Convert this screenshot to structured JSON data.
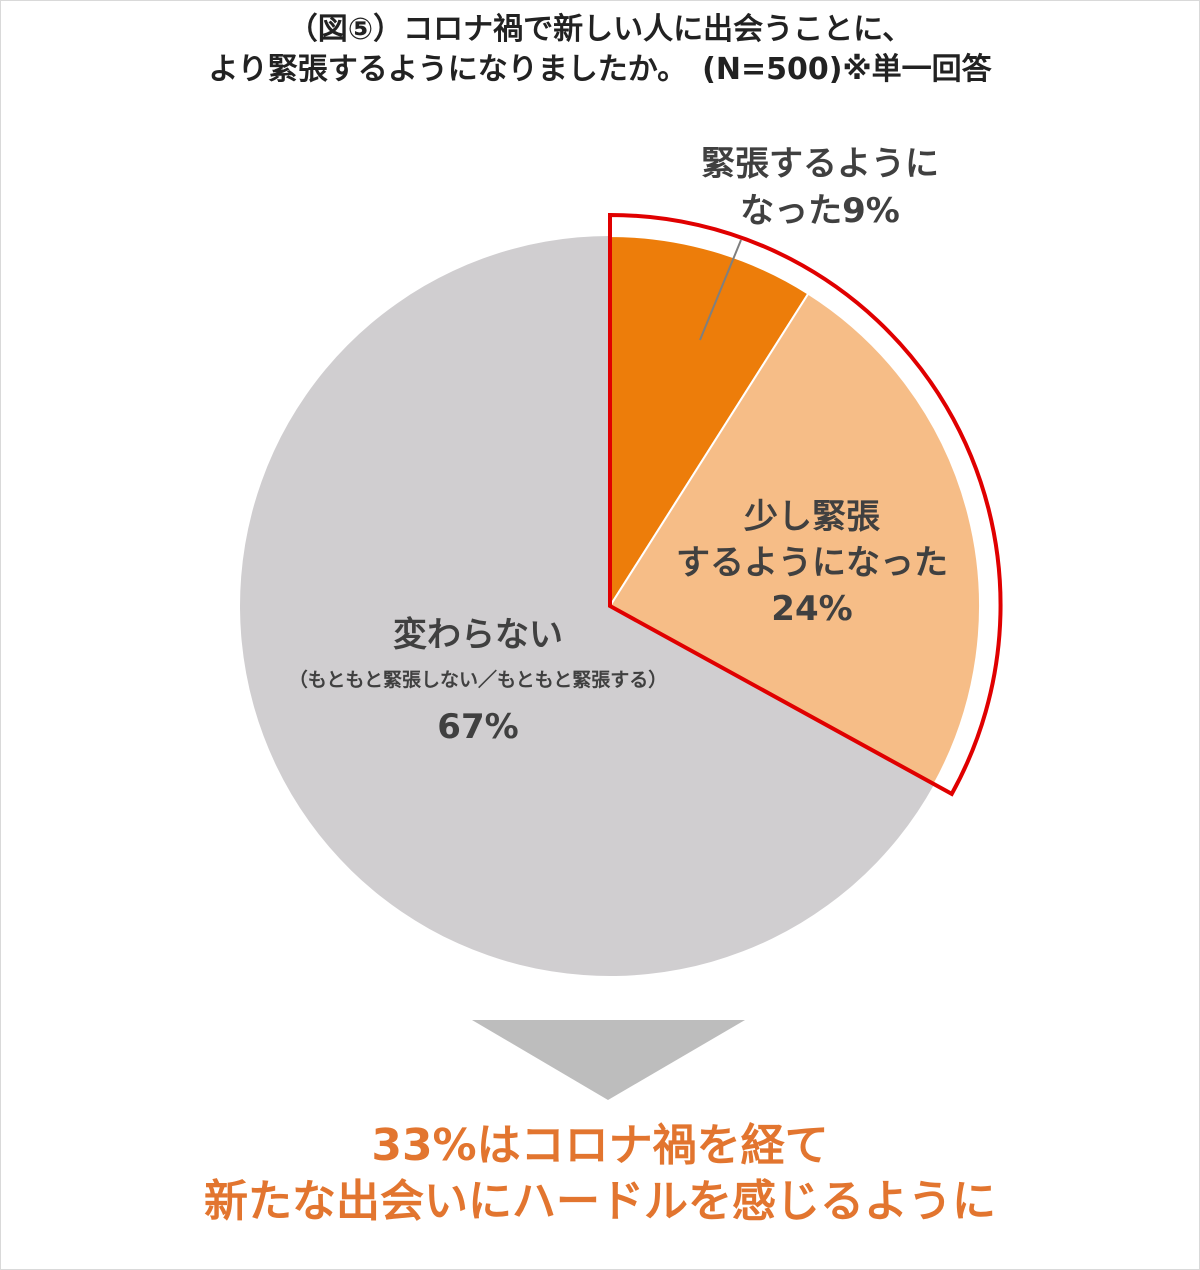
{
  "title": {
    "line1": "（図⑤）コロナ禍で新しい人に出会うことに、",
    "line2": "より緊張するようになりましたか。　(N=500)※単一回答"
  },
  "chart_data": {
    "type": "pie",
    "slices": [
      {
        "label": "緊張するようになった",
        "value": 9,
        "value_label": "9%",
        "color": "#ed7d0a"
      },
      {
        "label": "少し緊張するようになった",
        "value": 24,
        "value_label": "24%",
        "color": "#f6bd87"
      },
      {
        "label": "変わらない",
        "value": 67,
        "value_label": "67%",
        "color": "#d0ced0"
      }
    ],
    "highlight_color": "#e00000"
  },
  "labels": {
    "strong_line1": "緊張するように",
    "strong_line2": "なった9%",
    "slight_line1": "少し緊張",
    "slight_line2": "するようになった",
    "slight_value": "24%",
    "same_title": "変わらない",
    "same_note": "（もともと緊張しない／もともと緊張する）",
    "same_value": "67%"
  },
  "conclusion": {
    "line1": "33%はコロナ禍を経て",
    "line2": "新たな出会いにハードルを感じるように",
    "color": "#e2752f"
  },
  "arrow_color": "#bdbdbd"
}
